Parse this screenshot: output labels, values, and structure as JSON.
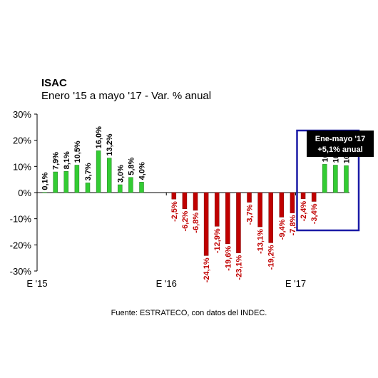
{
  "chart_data": {
    "type": "bar",
    "title": "ISAC",
    "subtitle": "Enero '15 a mayo '17 - Var. % anual",
    "ylim": [
      -30,
      30
    ],
    "yticks": [
      30,
      20,
      10,
      0,
      -10,
      -20,
      -30
    ],
    "ytick_labels": [
      "30%",
      "20%",
      "10%",
      "0%",
      "-10%",
      "-20%",
      "-30%"
    ],
    "x_tick_labels": [
      {
        "label": "E '15",
        "index": 0
      },
      {
        "label": "E '16",
        "index": 12
      },
      {
        "label": "E '17",
        "index": 24
      }
    ],
    "months": 29,
    "values": [
      0.1,
      7.9,
      8.1,
      10.5,
      3.7,
      16.0,
      13.2,
      3.0,
      5.8,
      4.0,
      null,
      null,
      -2.5,
      -6.2,
      -6.8,
      -24.1,
      -12.9,
      -19.6,
      -23.1,
      -3.7,
      -13.1,
      -19.2,
      -9.4,
      -7.8,
      -2.4,
      -3.4,
      10.8,
      10.5,
      10.3
    ],
    "data_labels": [
      "0,1%",
      "7,9%",
      "8,1%",
      "10,5%",
      "3,7%",
      "16,0%",
      "13,2%",
      "3,0%",
      "5,8%",
      "4,0%",
      "",
      "",
      "-2,5%",
      "-6,2%",
      "-6,8%",
      "-24,1%",
      "-12,9%",
      "-19,6%",
      "-23,1%",
      "-3,7%",
      "-13,1%",
      "-19,2%",
      "-9,4%",
      "-7,8%",
      "-2,4%",
      "-3,4%",
      "10,8%",
      "10,5%",
      "10,3%"
    ],
    "colors": {
      "positive": "#33cc33",
      "negative": "#c00000",
      "highlight_box": "#1a1aa6",
      "callout_bg": "#000000",
      "callout_text": "#ffffff"
    },
    "highlight": {
      "from_index": 24,
      "to_index": 28
    },
    "callout_lines": [
      "Ene-mayo '17",
      "+5,1% anual"
    ],
    "grid": false,
    "legend": "none"
  },
  "source": "Fuente: ESTRATECO, con datos del INDEC."
}
